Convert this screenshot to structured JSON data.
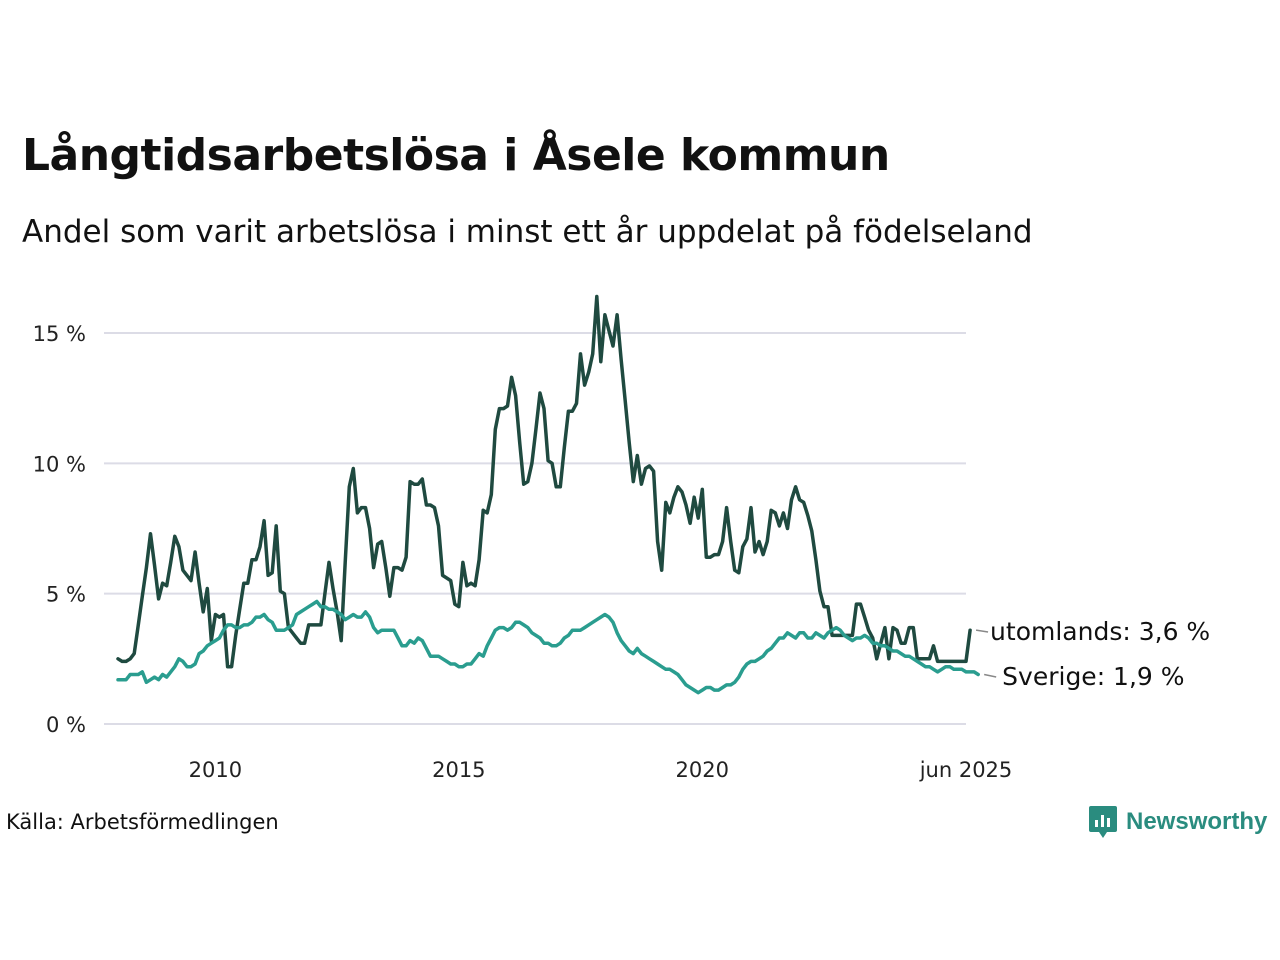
{
  "title": "Långtidsarbetslösa i Åsele kommun",
  "subtitle": "Andel som varit arbetslösa i minst ett år uppdelat på födelseland",
  "source": "Källa: Arbetsförmedlingen",
  "brand": {
    "name": "Newsworthy",
    "icon": "newsworthy-logo-icon"
  },
  "chart_data": {
    "type": "line",
    "x_start": "2008-01",
    "x_end": "2025-06",
    "frequency": "monthly",
    "ylim": [
      0,
      16.5
    ],
    "y_ticks": [
      0,
      5,
      10,
      15
    ],
    "y_tick_labels": [
      "0 %",
      "5 %",
      "10 %",
      "15 %"
    ],
    "x_tick_labels": [
      {
        "date": "2010-01",
        "label": "2010"
      },
      {
        "date": "2015-01",
        "label": "2015"
      },
      {
        "date": "2020-01",
        "label": "2020"
      },
      {
        "date": "2025-06",
        "label": "jun 2025"
      }
    ],
    "grid": true,
    "series": [
      {
        "name": "utomlands",
        "end_label": "utomlands: 3,6 %",
        "color": "#1f4a40",
        "values": [
          2.5,
          2.4,
          2.4,
          2.5,
          2.7,
          3.8,
          4.9,
          6.0,
          7.3,
          6.1,
          4.8,
          5.4,
          5.3,
          6.2,
          7.2,
          6.8,
          5.9,
          5.7,
          5.5,
          6.6,
          5.4,
          4.3,
          5.2,
          3.2,
          4.2,
          4.1,
          4.2,
          2.2,
          2.2,
          3.4,
          4.4,
          5.4,
          5.4,
          6.3,
          6.3,
          6.8,
          7.8,
          5.7,
          5.8,
          7.6,
          5.1,
          5.0,
          3.7,
          3.5,
          3.3,
          3.1,
          3.1,
          3.8,
          3.8,
          3.8,
          3.8,
          5.0,
          6.2,
          5.2,
          4.3,
          3.2,
          6.2,
          9.1,
          9.8,
          8.1,
          8.3,
          8.3,
          7.5,
          6.0,
          6.9,
          7.0,
          6.0,
          4.9,
          6.0,
          6.0,
          5.9,
          6.4,
          9.3,
          9.2,
          9.2,
          9.4,
          8.4,
          8.4,
          8.3,
          7.6,
          5.7,
          5.6,
          5.5,
          4.6,
          4.5,
          6.2,
          5.3,
          5.4,
          5.3,
          6.3,
          8.2,
          8.1,
          8.8,
          11.3,
          12.1,
          12.1,
          12.2,
          13.3,
          12.6,
          10.8,
          9.2,
          9.3,
          10.0,
          11.3,
          12.7,
          12.1,
          10.1,
          10.0,
          9.1,
          9.1,
          10.6,
          12.0,
          12.0,
          12.3,
          14.2,
          13.0,
          13.5,
          14.2,
          16.4,
          13.9,
          15.7,
          15.1,
          14.5,
          15.7,
          14.0,
          12.4,
          10.8,
          9.3,
          10.3,
          9.2,
          9.8,
          9.9,
          9.7,
          7.0,
          5.9,
          8.5,
          8.1,
          8.7,
          9.1,
          8.9,
          8.4,
          7.7,
          8.7,
          7.9,
          9.0,
          6.4,
          6.4,
          6.5,
          6.5,
          7.0,
          8.3,
          7.0,
          5.9,
          5.8,
          6.8,
          7.1,
          8.3,
          6.6,
          7.0,
          6.5,
          7.0,
          8.2,
          8.1,
          7.6,
          8.1,
          7.5,
          8.6,
          9.1,
          8.6,
          8.5,
          8.0,
          7.4,
          6.3,
          5.1,
          4.5,
          4.5,
          3.4,
          3.4,
          3.4,
          3.4,
          3.4,
          3.4,
          4.6,
          4.6,
          4.1,
          3.6,
          3.3,
          2.5,
          3.1,
          3.7,
          2.5,
          3.7,
          3.6,
          3.1,
          3.1,
          3.7,
          3.7,
          2.5,
          2.5,
          2.5,
          2.5,
          3.0,
          2.4,
          2.4,
          2.4,
          2.4,
          2.4,
          2.4,
          2.4,
          2.4,
          3.6
        ]
      },
      {
        "name": "Sverige",
        "end_label": "Sverige: 1,9 %",
        "color": "#2a9d8f",
        "values": [
          1.7,
          1.7,
          1.7,
          1.9,
          1.9,
          1.9,
          2.0,
          1.6,
          1.7,
          1.8,
          1.7,
          1.9,
          1.8,
          2.0,
          2.2,
          2.5,
          2.4,
          2.2,
          2.2,
          2.3,
          2.7,
          2.8,
          3.0,
          3.1,
          3.2,
          3.3,
          3.6,
          3.8,
          3.8,
          3.7,
          3.7,
          3.8,
          3.8,
          3.9,
          4.1,
          4.1,
          4.2,
          4.0,
          3.9,
          3.6,
          3.6,
          3.6,
          3.7,
          3.8,
          4.2,
          4.3,
          4.4,
          4.5,
          4.6,
          4.7,
          4.5,
          4.5,
          4.4,
          4.4,
          4.3,
          4.2,
          4.0,
          4.1,
          4.2,
          4.1,
          4.1,
          4.3,
          4.1,
          3.7,
          3.5,
          3.6,
          3.6,
          3.6,
          3.6,
          3.3,
          3.0,
          3.0,
          3.2,
          3.1,
          3.3,
          3.2,
          2.9,
          2.6,
          2.6,
          2.6,
          2.5,
          2.4,
          2.3,
          2.3,
          2.2,
          2.2,
          2.3,
          2.3,
          2.5,
          2.7,
          2.6,
          3.0,
          3.3,
          3.6,
          3.7,
          3.7,
          3.6,
          3.7,
          3.9,
          3.9,
          3.8,
          3.7,
          3.5,
          3.4,
          3.3,
          3.1,
          3.1,
          3.0,
          3.0,
          3.1,
          3.3,
          3.4,
          3.6,
          3.6,
          3.6,
          3.7,
          3.8,
          3.9,
          4.0,
          4.1,
          4.2,
          4.1,
          3.9,
          3.5,
          3.2,
          3.0,
          2.8,
          2.7,
          2.9,
          2.7,
          2.6,
          2.5,
          2.4,
          2.3,
          2.2,
          2.1,
          2.1,
          2.0,
          1.9,
          1.7,
          1.5,
          1.4,
          1.3,
          1.2,
          1.3,
          1.4,
          1.4,
          1.3,
          1.3,
          1.4,
          1.5,
          1.5,
          1.6,
          1.8,
          2.1,
          2.3,
          2.4,
          2.4,
          2.5,
          2.6,
          2.8,
          2.9,
          3.1,
          3.3,
          3.3,
          3.5,
          3.4,
          3.3,
          3.5,
          3.5,
          3.3,
          3.3,
          3.5,
          3.4,
          3.3,
          3.5,
          3.6,
          3.7,
          3.6,
          3.4,
          3.3,
          3.2,
          3.3,
          3.3,
          3.4,
          3.3,
          3.1,
          3.1,
          3.0,
          3.0,
          2.9,
          2.8,
          2.8,
          2.7,
          2.6,
          2.6,
          2.5,
          2.4,
          2.3,
          2.2,
          2.2,
          2.1,
          2.0,
          2.1,
          2.2,
          2.2,
          2.1,
          2.1,
          2.1,
          2.0,
          2.0,
          2.0,
          1.9
        ]
      }
    ]
  }
}
